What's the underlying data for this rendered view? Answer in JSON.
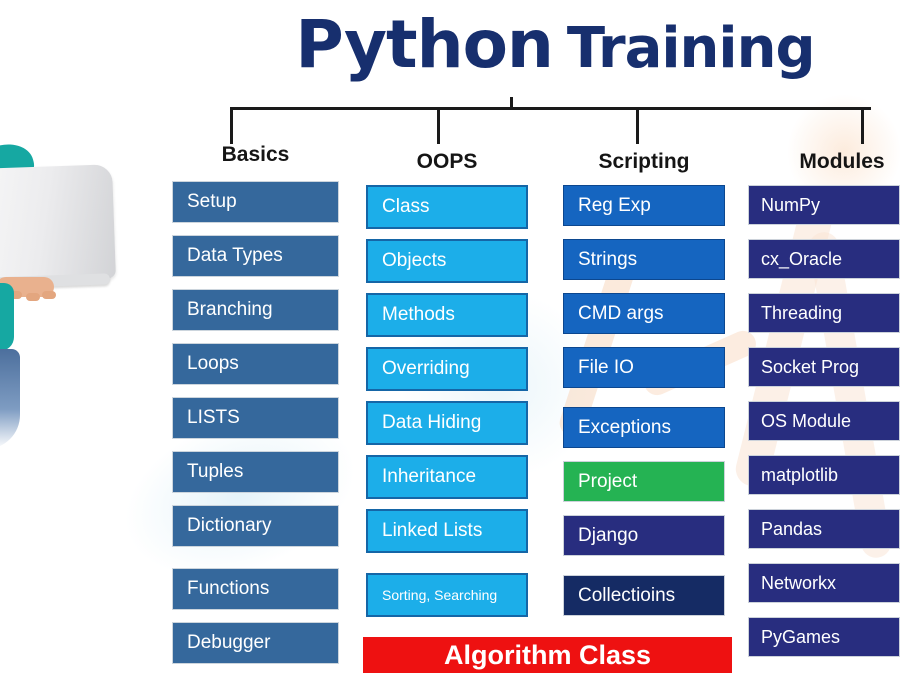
{
  "title": {
    "main": "Python",
    "sub": "Training"
  },
  "columns": [
    {
      "id": "basics",
      "header": "Basics",
      "variant": "steel",
      "items": [
        {
          "label": "Setup"
        },
        {
          "label": "Data Types"
        },
        {
          "label": "Branching"
        },
        {
          "label": "Loops"
        },
        {
          "label": "LISTS"
        },
        {
          "label": "Tuples"
        },
        {
          "label": "Dictionary"
        },
        {
          "label": "Functions",
          "gap": 9
        },
        {
          "label": "Debugger"
        }
      ]
    },
    {
      "id": "oops",
      "header": "OOPS",
      "variant": "cyan",
      "items": [
        {
          "label": "Class"
        },
        {
          "label": "Objects"
        },
        {
          "label": "Methods"
        },
        {
          "label": "Overriding"
        },
        {
          "label": "Data Hiding"
        },
        {
          "label": "Inheritance"
        },
        {
          "label": "Linked Lists"
        },
        {
          "label": "Sorting, Searching",
          "small": true,
          "gap": 10
        }
      ]
    },
    {
      "id": "scripting",
      "header": "Scripting",
      "variant": "royal",
      "items": [
        {
          "label": "Reg Exp"
        },
        {
          "label": "Strings"
        },
        {
          "label": "CMD args"
        },
        {
          "label": "File IO"
        },
        {
          "label": "Exceptions",
          "gap": 6
        },
        {
          "label": "Project",
          "variant": "green"
        },
        {
          "label": "Django",
          "variant": "indigo"
        },
        {
          "label": "Collectioins",
          "variant": "navy",
          "gap": 6
        }
      ]
    },
    {
      "id": "modules",
      "header": "Modules",
      "variant": "indigo",
      "items": [
        {
          "label": "NumPy"
        },
        {
          "label": "cx_Oracle"
        },
        {
          "label": "Threading"
        },
        {
          "label": "Socket Prog"
        },
        {
          "label": "OS Module"
        },
        {
          "label": "matplotlib"
        },
        {
          "label": "Pandas"
        },
        {
          "label": "Networkx"
        },
        {
          "label": "PyGames"
        }
      ]
    }
  ],
  "banner": {
    "label": "Algorithm Class"
  },
  "colors": {
    "title": "#172f6e",
    "line": "#1a1a1a",
    "steel": "#35689c",
    "cyan": "#1caee9",
    "cyanborder": "#1566a7",
    "royal": "#1565c0",
    "indigo": "#282d7f",
    "green": "#25b353",
    "navy": "#152b64",
    "banner": "#ee1111"
  }
}
